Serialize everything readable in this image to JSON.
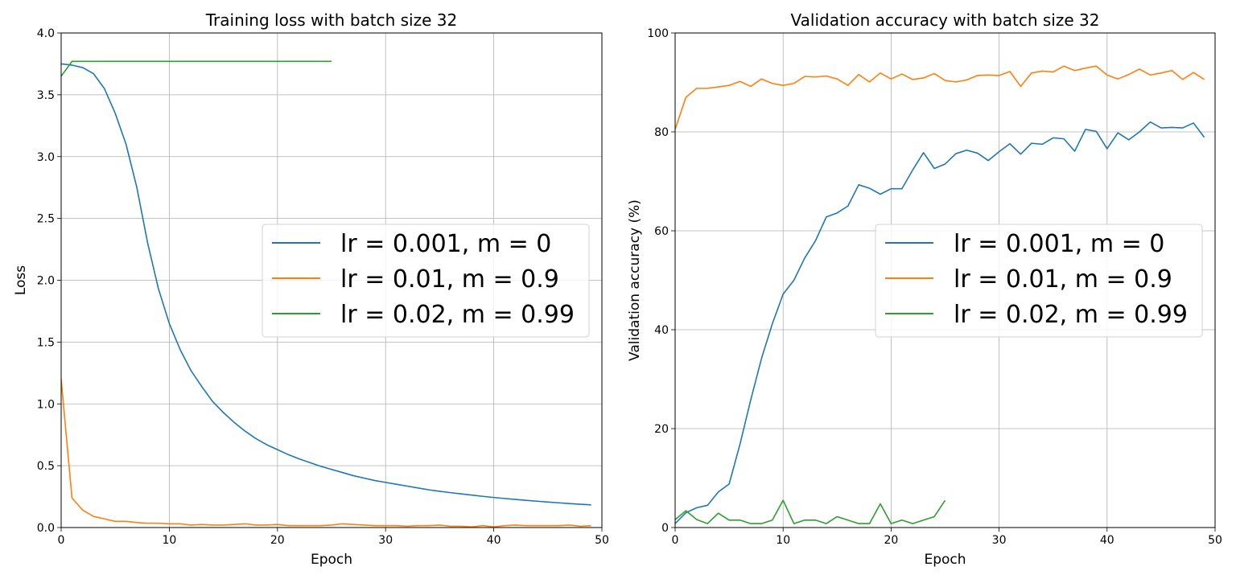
{
  "chart_data": [
    {
      "type": "line",
      "title": "Training loss with batch size 32",
      "xlabel": "Epoch",
      "ylabel": "Loss",
      "xlim": [
        0,
        50
      ],
      "ylim": [
        0,
        4.0
      ],
      "xticks": [
        "0",
        "10",
        "20",
        "30",
        "40",
        "50"
      ],
      "yticks": [
        "0.0",
        "0.5",
        "1.0",
        "1.5",
        "2.0",
        "2.5",
        "3.0",
        "3.5",
        "4.0"
      ],
      "grid": true,
      "legend_position": "center-right",
      "series": [
        {
          "name": "lr = 0.001, m = 0",
          "color": "#1f77b4",
          "x": [
            0,
            1,
            2,
            3,
            4,
            5,
            6,
            7,
            8,
            9,
            10,
            11,
            12,
            13,
            14,
            15,
            16,
            17,
            18,
            19,
            20,
            21,
            22,
            23,
            24,
            25,
            26,
            27,
            28,
            29,
            30,
            31,
            32,
            33,
            34,
            35,
            36,
            37,
            38,
            39,
            40,
            41,
            42,
            43,
            44,
            45,
            46,
            47,
            48,
            49
          ],
          "y": [
            3.75,
            3.74,
            3.72,
            3.67,
            3.55,
            3.35,
            3.1,
            2.75,
            2.3,
            1.93,
            1.65,
            1.44,
            1.27,
            1.14,
            1.02,
            0.93,
            0.85,
            0.78,
            0.72,
            0.67,
            0.63,
            0.59,
            0.555,
            0.525,
            0.495,
            0.47,
            0.445,
            0.42,
            0.4,
            0.38,
            0.365,
            0.35,
            0.335,
            0.32,
            0.305,
            0.293,
            0.282,
            0.272,
            0.262,
            0.252,
            0.243,
            0.235,
            0.227,
            0.22,
            0.213,
            0.206,
            0.2,
            0.194,
            0.188,
            0.183
          ]
        },
        {
          "name": "lr = 0.01, m = 0.9",
          "color": "#ff7f0e",
          "x": [
            0,
            1,
            2,
            3,
            4,
            5,
            6,
            7,
            8,
            9,
            10,
            11,
            12,
            13,
            14,
            15,
            16,
            17,
            18,
            19,
            20,
            21,
            22,
            23,
            24,
            25,
            26,
            27,
            28,
            29,
            30,
            31,
            32,
            33,
            34,
            35,
            36,
            37,
            38,
            39,
            40,
            41,
            42,
            43,
            44,
            45,
            46,
            47,
            48,
            49
          ],
          "y": [
            1.2,
            0.24,
            0.14,
            0.09,
            0.07,
            0.05,
            0.05,
            0.04,
            0.035,
            0.035,
            0.03,
            0.03,
            0.02,
            0.025,
            0.02,
            0.02,
            0.025,
            0.03,
            0.02,
            0.02,
            0.025,
            0.015,
            0.015,
            0.015,
            0.015,
            0.02,
            0.03,
            0.025,
            0.02,
            0.015,
            0.015,
            0.015,
            0.01,
            0.015,
            0.015,
            0.02,
            0.01,
            0.01,
            0.005,
            0.015,
            0.005,
            0.015,
            0.02,
            0.015,
            0.015,
            0.015,
            0.015,
            0.02,
            0.01,
            0.015
          ]
        },
        {
          "name": "lr = 0.02, m = 0.99",
          "color": "#2ca02c",
          "x": [
            0,
            1,
            2,
            3,
            4,
            5,
            6,
            7,
            8,
            9,
            10,
            11,
            12,
            13,
            14,
            15,
            16,
            17,
            18,
            19,
            20,
            21,
            22,
            23,
            24,
            25
          ],
          "y": [
            3.65,
            3.77,
            3.77,
            3.77,
            3.77,
            3.77,
            3.77,
            3.77,
            3.77,
            3.77,
            3.77,
            3.77,
            3.77,
            3.77,
            3.77,
            3.77,
            3.77,
            3.77,
            3.77,
            3.77,
            3.77,
            3.77,
            3.77,
            3.77,
            3.77,
            3.77
          ]
        }
      ]
    },
    {
      "type": "line",
      "title": "Validation accuracy with batch size 32",
      "xlabel": "Epoch",
      "ylabel": "Validation accuracy (%)",
      "xlim": [
        0,
        50
      ],
      "ylim": [
        0,
        100
      ],
      "xticks": [
        "0",
        "10",
        "20",
        "30",
        "40",
        "50"
      ],
      "yticks": [
        "0",
        "20",
        "40",
        "60",
        "80",
        "100"
      ],
      "grid": true,
      "legend_position": "center-right",
      "series": [
        {
          "name": "lr = 0.001, m = 0",
          "color": "#1f77b4",
          "x": [
            0,
            1,
            2,
            3,
            4,
            5,
            6,
            7,
            8,
            9,
            10,
            11,
            12,
            13,
            14,
            15,
            16,
            17,
            18,
            19,
            20,
            21,
            22,
            23,
            24,
            25,
            26,
            27,
            28,
            29,
            30,
            31,
            32,
            33,
            34,
            35,
            36,
            37,
            38,
            39,
            40,
            41,
            42,
            43,
            44,
            45,
            46,
            47,
            48,
            49
          ],
          "y": [
            0.8,
            3.0,
            4.0,
            4.5,
            7.2,
            8.8,
            16.8,
            25.8,
            34.2,
            41.2,
            47.2,
            50.0,
            54.5,
            58.0,
            62.8,
            63.6,
            65.0,
            69.3,
            68.6,
            67.4,
            68.5,
            68.5,
            72.3,
            75.8,
            72.6,
            73.5,
            75.6,
            76.3,
            75.7,
            74.2,
            76.0,
            77.6,
            75.5,
            77.7,
            77.5,
            78.8,
            78.6,
            76.1,
            80.5,
            80.1,
            76.6,
            79.8,
            78.4,
            80.0,
            82.0,
            80.8,
            80.9,
            80.8,
            81.8,
            78.9
          ]
        },
        {
          "name": "lr = 0.01, m = 0.9",
          "color": "#ff7f0e",
          "x": [
            0,
            1,
            2,
            3,
            4,
            5,
            6,
            7,
            8,
            9,
            10,
            11,
            12,
            13,
            14,
            15,
            16,
            17,
            18,
            19,
            20,
            21,
            22,
            23,
            24,
            25,
            26,
            27,
            28,
            29,
            30,
            31,
            32,
            33,
            34,
            35,
            36,
            37,
            38,
            39,
            40,
            41,
            42,
            43,
            44,
            45,
            46,
            47,
            48,
            49
          ],
          "y": [
            80.5,
            87.0,
            88.8,
            88.8,
            89.1,
            89.4,
            90.2,
            89.2,
            90.7,
            89.8,
            89.4,
            89.8,
            91.2,
            91.1,
            91.3,
            90.7,
            89.4,
            91.6,
            90.1,
            91.9,
            90.7,
            91.7,
            90.6,
            90.9,
            91.8,
            90.4,
            90.1,
            90.5,
            91.4,
            91.5,
            91.4,
            92.2,
            89.2,
            91.9,
            92.3,
            92.1,
            93.3,
            92.4,
            92.9,
            93.3,
            91.5,
            90.7,
            91.6,
            92.7,
            91.5,
            91.9,
            92.4,
            90.6,
            92.0,
            90.6
          ]
        },
        {
          "name": "lr = 0.02, m = 0.99",
          "color": "#2ca02c",
          "x": [
            0,
            1,
            2,
            3,
            4,
            5,
            6,
            7,
            8,
            9,
            10,
            11,
            12,
            13,
            14,
            15,
            16,
            17,
            18,
            19,
            20,
            21,
            22,
            23,
            24,
            25
          ],
          "y": [
            1.6,
            3.4,
            1.6,
            0.8,
            2.9,
            1.5,
            1.5,
            0.8,
            0.8,
            1.5,
            5.5,
            0.8,
            1.5,
            1.5,
            0.8,
            2.2,
            1.5,
            0.8,
            0.8,
            4.8,
            0.8,
            1.5,
            0.8,
            1.5,
            2.2,
            5.5
          ]
        }
      ]
    }
  ]
}
